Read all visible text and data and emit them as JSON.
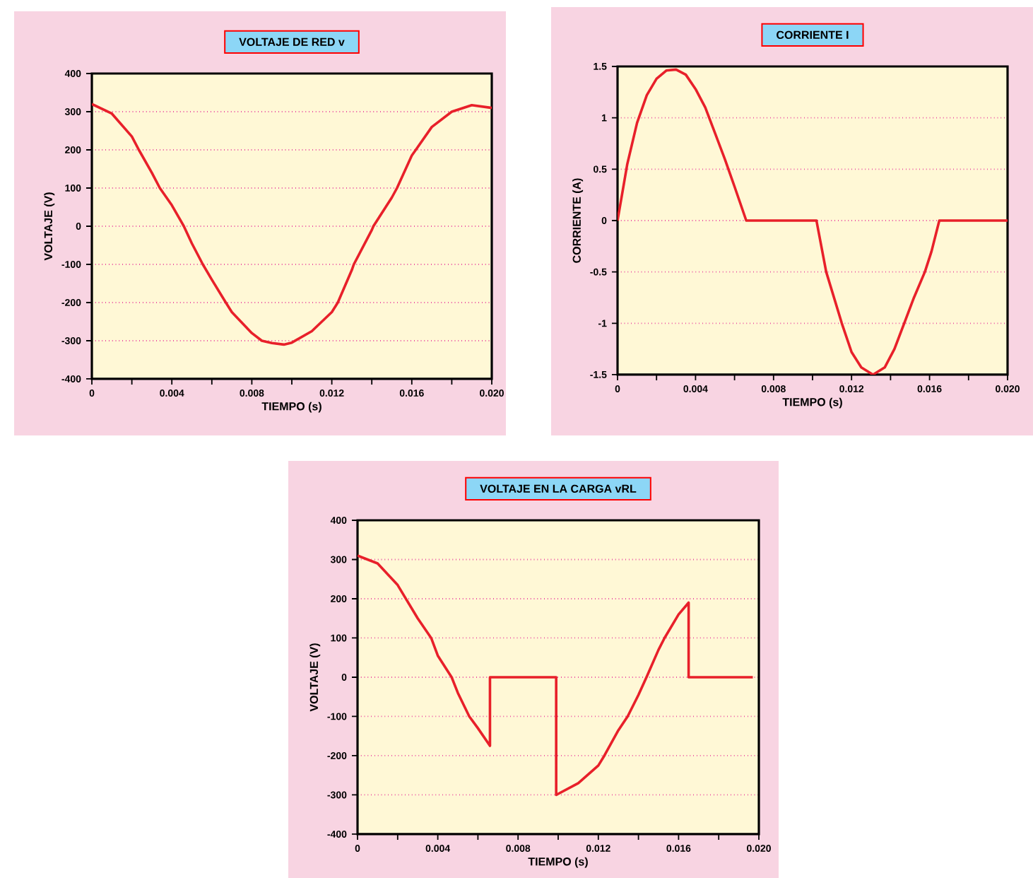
{
  "chart_data": [
    {
      "type": "line",
      "title": "VOLTAJE DE RED v",
      "xlabel": "TIEMPO (s)",
      "ylabel": "VOLTAJE (V)",
      "color": "#e8202a",
      "line_style": "solid",
      "marker": "none",
      "grid": "y",
      "x": [
        0,
        0.001,
        0.002,
        0.00235,
        0.003,
        0.0034,
        0.004,
        0.0046,
        0.005,
        0.00555,
        0.006,
        0.0067,
        0.007,
        0.008,
        0.0085,
        0.009,
        0.0096,
        0.01,
        0.011,
        0.012,
        0.0123,
        0.013,
        0.0131,
        0.014,
        0.01408,
        0.015,
        0.01526,
        0.016,
        0.0162,
        0.017,
        0.018,
        0.019,
        0.02
      ],
      "values": [
        320,
        295,
        235,
        200,
        140,
        100,
        55,
        0,
        -45,
        -100,
        -140,
        -200,
        -225,
        -280,
        -300,
        -306,
        -310,
        -305,
        -275,
        -225,
        -200,
        -115,
        -100,
        -10,
        0,
        75,
        100,
        185,
        200,
        260,
        300,
        317,
        310
      ],
      "xlim": [
        0,
        0.02
      ],
      "ylim": [
        -400,
        400
      ],
      "xticks": [
        0,
        {
          "value": 0.002,
          "label": null
        },
        0.004,
        {
          "value": 0.006,
          "label": null
        },
        0.008,
        {
          "value": 0.01,
          "label": null
        },
        0.012,
        {
          "value": 0.014,
          "label": null
        },
        0.016,
        {
          "value": 0.018,
          "label": null
        },
        {
          "value": 0.02,
          "label": "0.020"
        }
      ],
      "yticks": [
        -400,
        -300,
        -200,
        -100,
        0,
        100,
        200,
        300,
        400
      ]
    },
    {
      "type": "line",
      "title": "CORRIENTE I",
      "xlabel": "TIEMPO (s)",
      "ylabel": "CORRIENTE (A)",
      "color": "#e8202a",
      "line_style": "solid",
      "marker": "none",
      "grid": "y",
      "x": [
        0,
        0.0005,
        0.001,
        0.0015,
        0.002,
        0.0025,
        0.003,
        0.0035,
        0.004,
        0.0045,
        0.005,
        0.0055,
        0.006,
        0.0066,
        0.0102,
        0.0107,
        0.0115,
        0.012,
        0.0125,
        0.0131,
        0.0137,
        0.0142,
        0.0147,
        0.0152,
        0.01576,
        0.0161,
        0.0165,
        0.02
      ],
      "values": [
        0,
        0.55,
        0.95,
        1.22,
        1.38,
        1.46,
        1.47,
        1.42,
        1.28,
        1.1,
        0.85,
        0.6,
        0.33,
        0,
        0,
        -0.5,
        -1,
        -1.28,
        -1.43,
        -1.5,
        -1.43,
        -1.25,
        -1,
        -0.75,
        -0.5,
        -0.3,
        0,
        0
      ],
      "xlim": [
        0,
        0.02
      ],
      "ylim": [
        -1.5,
        1.5
      ],
      "xticks": [
        0,
        {
          "value": 0.002,
          "label": null
        },
        0.004,
        {
          "value": 0.006,
          "label": null
        },
        0.008,
        {
          "value": 0.01,
          "label": null
        },
        0.012,
        {
          "value": 0.014,
          "label": null
        },
        0.016,
        {
          "value": 0.018,
          "label": null
        },
        {
          "value": 0.02,
          "label": "0.020"
        }
      ],
      "yticks": [
        -1.5,
        -1,
        -0.5,
        0,
        0.5,
        1,
        1.5
      ]
    },
    {
      "type": "line",
      "title": "VOLTAJE EN LA CARGA vRL",
      "xlabel": "TIEMPO (s)",
      "ylabel": "VOLTAJE (V)",
      "color": "#e8202a",
      "line_style": "solid",
      "marker": "none",
      "grid": "y",
      "x": [
        0,
        0.001,
        0.002,
        0.003,
        0.00367,
        0.004,
        0.00469,
        0.005,
        0.00557,
        0.006,
        0.0066,
        0.0066,
        0.0099,
        0.0099,
        0.011,
        0.012,
        0.0123,
        0.013,
        0.01346,
        0.014,
        0.0144,
        0.015,
        0.0153,
        0.016,
        0.0165,
        0.0165,
        0.0197
      ],
      "values": [
        310,
        290,
        235,
        150,
        100,
        55,
        0,
        -40,
        -100,
        -130,
        -175,
        0,
        0,
        -300,
        -270,
        -225,
        -200,
        -135,
        -100,
        -45,
        0,
        70,
        100,
        160,
        190,
        0,
        0
      ],
      "xlim": [
        0,
        0.02
      ],
      "ylim": [
        -400,
        400
      ],
      "xticks": [
        0,
        {
          "value": 0.002,
          "label": null
        },
        0.004,
        {
          "value": 0.006,
          "label": null
        },
        0.008,
        {
          "value": 0.01,
          "label": null
        },
        0.012,
        {
          "value": 0.014,
          "label": null
        },
        0.016,
        {
          "value": 0.018,
          "label": null
        },
        {
          "value": 0.02,
          "label": "0.020"
        }
      ],
      "yticks": [
        -400,
        -300,
        -200,
        -100,
        0,
        100,
        200,
        300,
        400
      ]
    }
  ]
}
